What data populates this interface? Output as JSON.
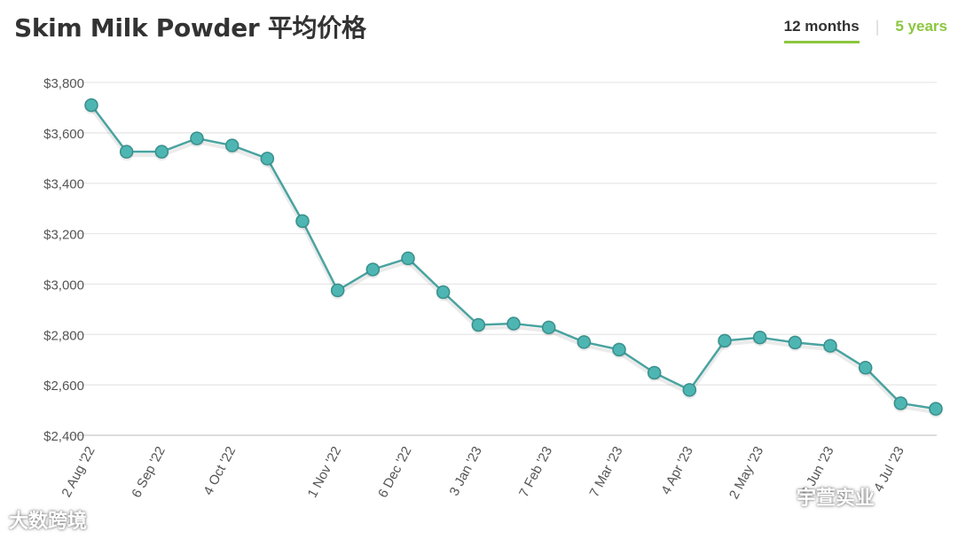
{
  "title": "Skim Milk Powder 平均价格",
  "tabs": [
    {
      "label": "12 months",
      "active": true
    },
    {
      "label": "5 years",
      "active": false
    }
  ],
  "colors": {
    "line": "#4aa3a0",
    "marker": "#4db6b3",
    "marker_stroke": "#3a8f8c",
    "accent": "#8cc63f",
    "grid": "#e6e6e6"
  },
  "watermarks": [
    "大数跨境",
    "宇萱实业"
  ],
  "chart_data": {
    "type": "line",
    "ylim": [
      2400,
      3800
    ],
    "yticks": [
      2400,
      2600,
      2800,
      3000,
      3200,
      3400,
      3600,
      3800
    ],
    "ytick_labels": [
      "$2,400",
      "$2,600",
      "$2,800",
      "$3,000",
      "$3,200",
      "$3,400",
      "$3,600",
      "$3,800"
    ],
    "x_labels": [
      "2 Aug '22",
      "6 Sep '22",
      "4 Oct '22",
      "1 Nov '22",
      "6 Dec '22",
      "3 Jan '23",
      "7 Feb '23",
      "7 Mar '23",
      "4 Apr '23",
      "2 May '23",
      "6 Jun '23",
      "4 Jul '23"
    ],
    "x_label_index": [
      0,
      2,
      4,
      7,
      9,
      11,
      13,
      15,
      17,
      19,
      21,
      23
    ],
    "values": [
      3710,
      3525,
      3525,
      3578,
      3550,
      3498,
      3250,
      2975,
      3058,
      3102,
      2968,
      2838,
      2843,
      2828,
      2770,
      2740,
      2648,
      2580,
      2775,
      2788,
      2768,
      2755,
      2668,
      2527,
      2505
    ],
    "grid": true,
    "legend": "none"
  }
}
